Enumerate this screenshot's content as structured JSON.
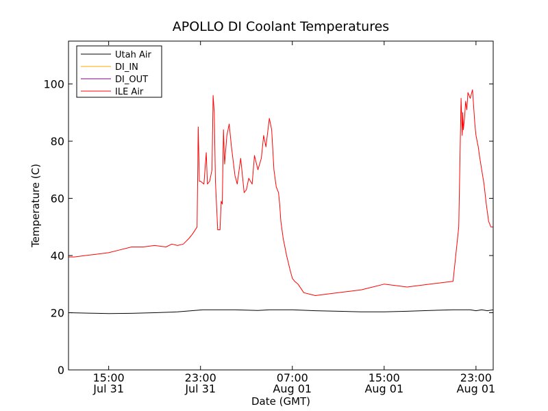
{
  "chart_data": {
    "type": "line",
    "title": "APOLLO DI Coolant Temperatures",
    "xlabel": "Date (GMT)",
    "ylabel": "Temperature (C)",
    "x_unit": "hours since 2014-07-31 00:00 GMT (illustrative origin)",
    "xlim": [
      11.5,
      48.5
    ],
    "ylim": [
      0,
      115
    ],
    "yticks": [
      0,
      20,
      40,
      60,
      80,
      100
    ],
    "xticks": [
      {
        "value": 15,
        "time": "15:00",
        "date": "Jul 31"
      },
      {
        "value": 23,
        "time": "23:00",
        "date": "Jul 31"
      },
      {
        "value": 31,
        "time": "07:00",
        "date": "Aug 01"
      },
      {
        "value": 39,
        "time": "15:00",
        "date": "Aug 01"
      },
      {
        "value": 47,
        "time": "23:00",
        "date": "Aug 01"
      }
    ],
    "grid": false,
    "legend_position": "top-left",
    "series": [
      {
        "name": "Utah Air",
        "color": "#000000",
        "x": [
          11.5,
          14,
          15,
          17,
          19,
          21,
          22.5,
          23.2,
          26,
          28,
          29,
          31,
          33,
          35,
          37,
          39,
          41,
          43,
          45,
          46.5,
          47,
          47.5,
          48,
          48.5
        ],
        "y": [
          20,
          19.8,
          19.7,
          19.8,
          20,
          20.3,
          20.8,
          21,
          21,
          20.8,
          21,
          21,
          20.7,
          20.5,
          20.3,
          20.3,
          20.5,
          20.8,
          21,
          21,
          20.7,
          21,
          20.7,
          21
        ]
      },
      {
        "name": "DI_IN",
        "color": "#ffa500",
        "x": [],
        "y": []
      },
      {
        "name": "DI_OUT",
        "color": "#800080",
        "x": [],
        "y": []
      },
      {
        "name": "ILE Air",
        "color": "#ff0000",
        "x": [
          11.5,
          12,
          13,
          14,
          15,
          16,
          17,
          18,
          19,
          20,
          20.5,
          21,
          21.5,
          22,
          22.3,
          22.7,
          22.8,
          22.9,
          23,
          23.3,
          23.5,
          23.6,
          23.8,
          24,
          24.1,
          24.2,
          24.3,
          24.5,
          24.7,
          24.8,
          24.9,
          25,
          25.1,
          25.3,
          25.5,
          25.7,
          26,
          26.2,
          26.5,
          26.8,
          27,
          27.2,
          27.5,
          27.7,
          28,
          28.3,
          28.5,
          28.7,
          29,
          29.2,
          29.4,
          29.6,
          29.8,
          29.9,
          30,
          30.2,
          30.5,
          30.8,
          31,
          31.2,
          31.5,
          32,
          32.5,
          33,
          34,
          35,
          36,
          37,
          38,
          39,
          40,
          41,
          42,
          43,
          44,
          45,
          45.5,
          45.7,
          45.8,
          45.85,
          45.9,
          46,
          46.1,
          46.2,
          46.3,
          46.5,
          46.7,
          46.9,
          47,
          47.1,
          47.2,
          47.3,
          47.5,
          47.7,
          47.9,
          48.1,
          48.3,
          48.5
        ],
        "y": [
          39.5,
          39.5,
          40,
          40.5,
          41,
          42,
          43,
          43,
          43.5,
          43,
          44,
          43.5,
          44,
          46,
          47.5,
          50,
          85,
          66,
          66,
          65,
          76,
          65,
          66,
          70,
          96,
          90,
          66,
          49,
          49,
          59,
          58,
          84,
          72,
          82,
          86,
          78,
          68,
          65,
          74,
          62,
          63,
          67,
          65,
          75,
          70,
          74,
          82,
          78,
          88,
          84,
          70,
          64,
          62,
          58,
          52,
          46,
          40,
          35,
          32,
          31,
          30,
          27,
          26.5,
          26,
          26.5,
          27,
          27.5,
          28,
          29,
          30,
          29.5,
          29,
          29.5,
          30,
          30.5,
          31,
          50,
          95,
          82,
          90,
          84,
          88,
          94,
          91,
          97,
          95,
          98,
          86,
          82,
          80,
          78,
          75,
          70,
          65,
          58,
          52,
          50,
          50
        ]
      }
    ]
  }
}
